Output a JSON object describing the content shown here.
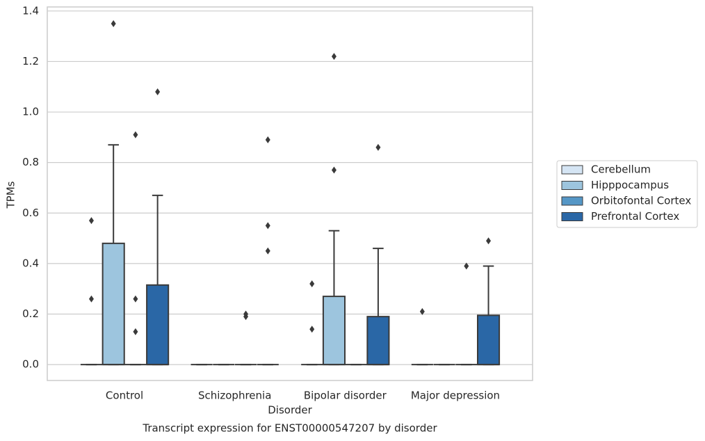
{
  "chart_data": {
    "type": "box",
    "title": "Transcript expression for ENST00000547207 by disorder",
    "x_label": "Disorder",
    "y_label": "TPMs",
    "categories": [
      "Control",
      "Schizophrenia",
      "Bipolar disorder",
      "Major depression"
    ],
    "ylim": [
      -0.063,
      1.416
    ],
    "yticks": [
      {
        "value": 0,
        "label": "0.0"
      },
      0.2,
      0.4,
      0.6,
      0.8,
      {
        "value": 1,
        "label": "1.0"
      },
      1.2,
      1.4
    ],
    "grid": true,
    "legend_position": "right",
    "series": [
      {
        "name": "Cerebellum",
        "color": "#d5e5f4",
        "boxes": [
          {
            "whislo": 0,
            "q1": 0,
            "median": 0,
            "q3": 0,
            "whishi": 0,
            "fliers": [
              0.57,
              0.26
            ]
          },
          {
            "whislo": 0,
            "q1": 0,
            "median": 0,
            "q3": 0,
            "whishi": 0,
            "fliers": []
          },
          {
            "whislo": 0,
            "q1": 0,
            "median": 0,
            "q3": 0,
            "whishi": 0,
            "fliers": [
              0.32,
              0.14
            ]
          },
          {
            "whislo": 0,
            "q1": 0,
            "median": 0,
            "q3": 0,
            "whishi": 0,
            "fliers": [
              0.21
            ]
          }
        ]
      },
      {
        "name": "Hipppocampus",
        "color": "#9dc5de",
        "boxes": [
          {
            "whislo": 0,
            "q1": 0,
            "median": 0,
            "q3": 0.48,
            "whishi": 0.87,
            "fliers": [
              1.35
            ]
          },
          {
            "whislo": 0,
            "q1": 0,
            "median": 0,
            "q3": 0,
            "whishi": 0,
            "fliers": []
          },
          {
            "whislo": 0,
            "q1": 0,
            "median": 0,
            "q3": 0.27,
            "whishi": 0.53,
            "fliers": [
              1.22,
              0.77
            ]
          },
          {
            "whislo": 0,
            "q1": 0,
            "median": 0,
            "q3": 0,
            "whishi": 0,
            "fliers": []
          }
        ]
      },
      {
        "name": "Orbitofontal Cortex",
        "color": "#5597c6",
        "boxes": [
          {
            "whislo": 0,
            "q1": 0,
            "median": 0,
            "q3": 0,
            "whishi": 0,
            "fliers": [
              0.91,
              0.26,
              0.13
            ]
          },
          {
            "whislo": 0,
            "q1": 0,
            "median": 0,
            "q3": 0,
            "whishi": 0,
            "fliers": [
              0.2,
              0.19
            ]
          },
          {
            "whislo": 0,
            "q1": 0,
            "median": 0,
            "q3": 0,
            "whishi": 0,
            "fliers": []
          },
          {
            "whislo": 0,
            "q1": 0,
            "median": 0,
            "q3": 0,
            "whishi": 0,
            "fliers": [
              0.39
            ]
          }
        ]
      },
      {
        "name": "Prefrontal Cortex",
        "color": "#2a67a6",
        "boxes": [
          {
            "whislo": 0,
            "q1": 0,
            "median": 0,
            "q3": 0.315,
            "whishi": 0.67,
            "fliers": [
              1.08
            ]
          },
          {
            "whislo": 0,
            "q1": 0,
            "median": 0,
            "q3": 0,
            "whishi": 0,
            "fliers": [
              0.89,
              0.55,
              0.45
            ]
          },
          {
            "whislo": 0,
            "q1": 0,
            "median": 0,
            "q3": 0.19,
            "whishi": 0.46,
            "fliers": [
              0.86
            ]
          },
          {
            "whislo": 0,
            "q1": 0,
            "median": 0,
            "q3": 0.195,
            "whishi": 0.39,
            "fliers": [
              0.49
            ]
          }
        ]
      }
    ]
  }
}
